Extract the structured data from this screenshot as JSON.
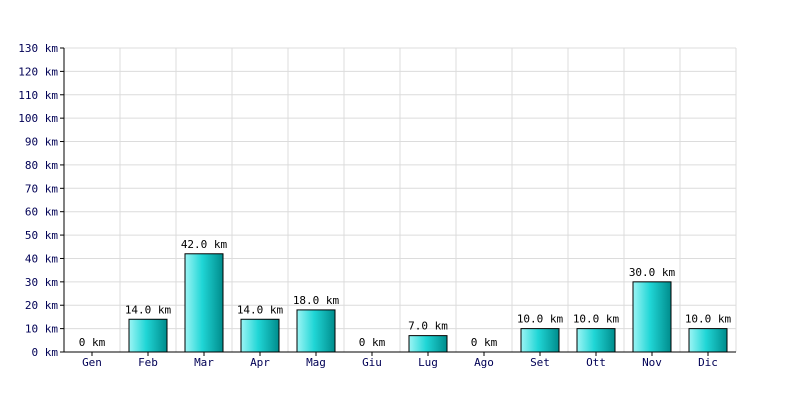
{
  "colors": {
    "background": "#ffffff",
    "grid": "#dcdcdc",
    "axis": "#000000",
    "bar_light": "#9cf5f5",
    "bar_mid": "#20d6d6",
    "bar_dark": "#008c8c",
    "bar_stroke": "#000000",
    "tick_text": "#000055"
  },
  "chart_data": {
    "type": "bar",
    "title": "",
    "xlabel": "",
    "ylabel": "",
    "categories": [
      "Gen",
      "Feb",
      "Mar",
      "Apr",
      "Mag",
      "Giu",
      "Lug",
      "Ago",
      "Set",
      "Ott",
      "Nov",
      "Dic"
    ],
    "values": [
      0,
      14,
      42,
      14,
      18,
      0,
      7,
      0,
      10,
      10,
      30,
      10
    ],
    "value_labels": [
      "0 km",
      "14.0 km",
      "42.0 km",
      "14.0 km",
      "18.0 km",
      "0 km",
      "7.0 km",
      "0 km",
      "10.0 km",
      "10.0 km",
      "30.0 km",
      "10.0 km"
    ],
    "ylim": [
      0,
      130
    ],
    "y_ticks": [
      0,
      10,
      20,
      30,
      40,
      50,
      60,
      70,
      80,
      90,
      100,
      110,
      120,
      130
    ],
    "y_tick_labels": [
      "0 km",
      "10 km",
      "20 km",
      "30 km",
      "40 km",
      "50 km",
      "60 km",
      "70 km",
      "80 km",
      "90 km",
      "100 km",
      "110 km",
      "120 km",
      "130 km"
    ],
    "grid": true,
    "legend": "none"
  }
}
